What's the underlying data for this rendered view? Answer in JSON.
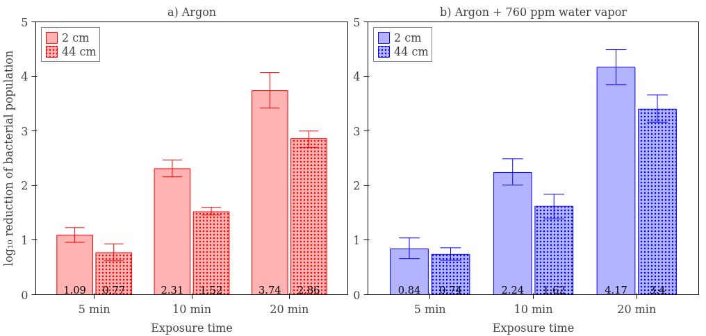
{
  "chart_data": [
    {
      "type": "bar",
      "title": "a) Argon",
      "xlabel": "Exposure time",
      "ylabel": "log₁₀ reduction of bacterial population",
      "categories": [
        "5 min",
        "10 min",
        "20 min"
      ],
      "series": [
        {
          "name": "2 cm",
          "color": "#ffb3b3",
          "values": [
            1.09,
            2.31,
            3.74
          ],
          "errors": [
            [
              0.96,
              1.23
            ],
            [
              2.16,
              2.47
            ],
            [
              3.42,
              4.07
            ]
          ]
        },
        {
          "name": "44 cm",
          "color": "#ffb3b3",
          "values": [
            0.77,
            1.52,
            2.86
          ],
          "errors": [
            [
              0.62,
              0.93
            ],
            [
              1.46,
              1.6
            ],
            [
              2.7,
              3.0
            ]
          ]
        }
      ],
      "ylim": [
        0,
        5
      ],
      "yticks": [
        0,
        1,
        2,
        3,
        4,
        5
      ],
      "data_labels": true,
      "legend": "top left",
      "grid": false
    },
    {
      "type": "bar",
      "title": "b) Argon + 760 ppm water vapor",
      "xlabel": "Exposure time",
      "categories": [
        "5 min",
        "10 min",
        "20 min"
      ],
      "series": [
        {
          "name": "2 cm",
          "color": "#b3b3ff",
          "values": [
            0.84,
            2.24,
            4.17
          ],
          "errors": [
            [
              0.66,
              1.04
            ],
            [
              2.01,
              2.49
            ],
            [
              3.85,
              4.49
            ]
          ]
        },
        {
          "name": "44 cm",
          "color": "#b3b3ff",
          "values": [
            0.74,
            1.62,
            3.4
          ],
          "errors": [
            [
              0.63,
              0.86
            ],
            [
              1.39,
              1.84
            ],
            [
              3.16,
              3.66
            ]
          ]
        }
      ],
      "ylim": [
        0,
        5
      ],
      "yticks": [
        0,
        1,
        2,
        3,
        4,
        5
      ],
      "data_labels": true,
      "legend": "top left",
      "grid": false
    }
  ]
}
